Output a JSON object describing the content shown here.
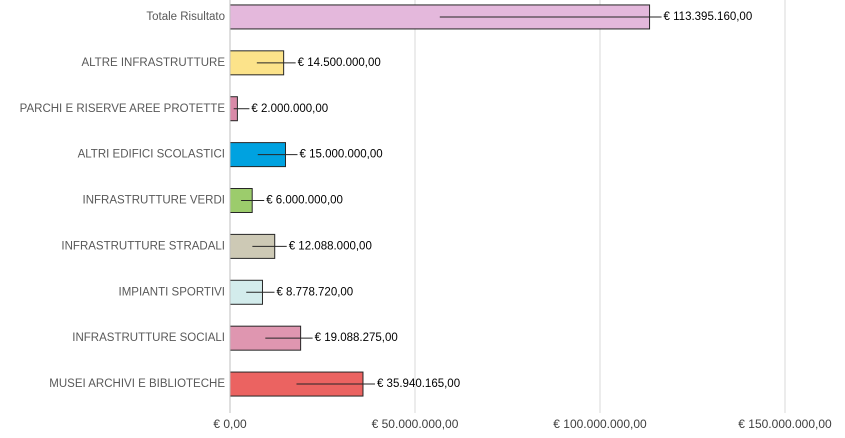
{
  "chart_data": {
    "type": "barh",
    "categories": [
      "Totale Risultato",
      "ALTRE INFRASTRUTTURE",
      "PARCHI E RISERVE AREE PROTETTE",
      "ALTRI EDIFICI SCOLASTICI",
      "INFRASTRUTTURE VERDI",
      "INFRASTRUTTURE STRADALI",
      "IMPIANTI SPORTIVI",
      "INFRASTRUTTURE SOCIALI",
      "MUSEI ARCHIVI E BIBLIOTECHE"
    ],
    "values": [
      113395160,
      14500000,
      2000000,
      15000000,
      6000000,
      12088000,
      8778720,
      19088275,
      35940165
    ],
    "value_labels": [
      "€ 113.395.160,00",
      "€ 14.500.000,00",
      "€ 2.000.000,00",
      "€ 15.000.000,00",
      "€ 6.000.000,00",
      "€ 12.088.000,00",
      "€ 8.778.720,00",
      "€ 19.088.275,00",
      "€ 35.940.165,00"
    ],
    "colors": [
      "#e4b8dc",
      "#fce38a",
      "#d98aa8",
      "#00a2e0",
      "#9ccc6c",
      "#cdc9b5",
      "#d3ecec",
      "#df96b0",
      "#eb6361"
    ],
    "xlim": [
      0,
      150000000
    ],
    "xticks": [
      {
        "value": 0,
        "label": "€ 0,00"
      },
      {
        "value": 50000000,
        "label": "€ 50.000.000,00"
      },
      {
        "value": 100000000,
        "label": "€ 100.000.000,00"
      },
      {
        "value": 150000000,
        "label": "€ 150.000.000,00"
      }
    ],
    "grid": true
  }
}
